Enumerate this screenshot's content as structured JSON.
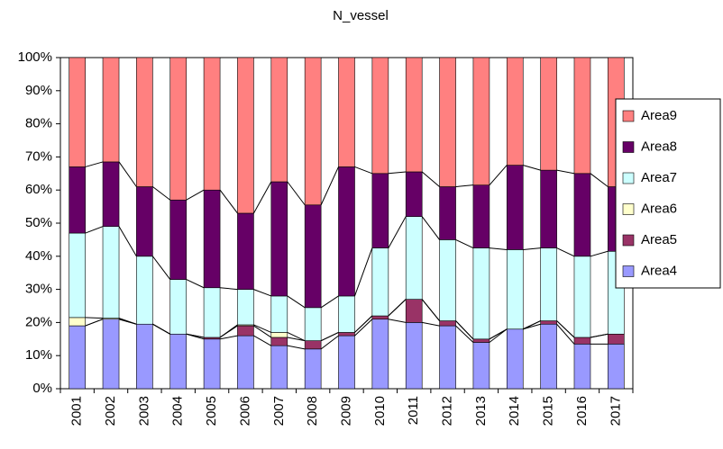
{
  "chart_data": {
    "type": "stacked_bar",
    "title": "N_vessel",
    "categories": [
      "2001",
      "2002",
      "2003",
      "2004",
      "2005",
      "2006",
      "2007",
      "2008",
      "2009",
      "2010",
      "2011",
      "2012",
      "2013",
      "2014",
      "2015",
      "2016",
      "2017"
    ],
    "series": [
      {
        "name": "Area4",
        "color": "#9999ff",
        "values": [
          19,
          21,
          19.5,
          16.5,
          15,
          16,
          13,
          12,
          16,
          21,
          20,
          19,
          14,
          18,
          19.5,
          13.5,
          13.5
        ]
      },
      {
        "name": "Area5",
        "color": "#993366",
        "values": [
          0,
          0,
          0,
          0,
          0.5,
          3,
          2.5,
          2.5,
          1,
          1,
          7,
          1.5,
          1,
          0,
          1,
          2,
          3
        ]
      },
      {
        "name": "Area6",
        "color": "#ffffcc",
        "values": [
          2.5,
          0.3,
          0,
          0,
          0,
          0.3,
          1.5,
          0,
          0,
          0,
          0,
          0,
          0,
          0,
          0,
          0,
          0
        ]
      },
      {
        "name": "Area7",
        "color": "#ccffff",
        "values": [
          25.5,
          27.7,
          20.5,
          16.5,
          15,
          10.7,
          11,
          10,
          11,
          20.5,
          25,
          24.5,
          27.5,
          24,
          22,
          24.5,
          25
        ]
      },
      {
        "name": "Area8",
        "color": "#660066",
        "values": [
          20,
          19.5,
          21,
          24,
          29.5,
          23,
          34.5,
          31,
          39,
          22.5,
          13.5,
          16,
          19,
          25.5,
          23.5,
          25,
          19.5
        ]
      },
      {
        "name": "Area9",
        "color": "#ff8080",
        "values": [
          33,
          31.5,
          39,
          43,
          40,
          47,
          37.5,
          44.5,
          33,
          35,
          34.5,
          39,
          38.5,
          32.5,
          34,
          35,
          39
        ]
      }
    ],
    "ylim": [
      0,
      100
    ],
    "yticks": [
      {
        "value": 0,
        "label": "0%"
      },
      {
        "value": 10,
        "label": "10%"
      },
      {
        "value": 20,
        "label": "20%"
      },
      {
        "value": 30,
        "label": "30%"
      },
      {
        "value": 40,
        "label": "40%"
      },
      {
        "value": 50,
        "label": "50%"
      },
      {
        "value": 60,
        "label": "60%"
      },
      {
        "value": 70,
        "label": "70%"
      },
      {
        "value": 80,
        "label": "80%"
      },
      {
        "value": 90,
        "label": "90%"
      },
      {
        "value": 100,
        "label": "100%"
      }
    ],
    "legend": "right"
  }
}
